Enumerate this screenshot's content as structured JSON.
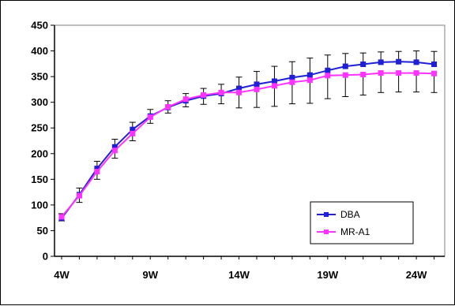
{
  "chart_data": {
    "type": "line",
    "title": "",
    "xlabel": "",
    "ylabel": "",
    "x": [
      4,
      5,
      6,
      7,
      8,
      9,
      10,
      11,
      12,
      13,
      14,
      15,
      16,
      17,
      18,
      19,
      20,
      21,
      22,
      23,
      24,
      25
    ],
    "xticks": [
      {
        "value": 4,
        "label": "4W"
      },
      {
        "value": 9,
        "label": "9W"
      },
      {
        "value": 14,
        "label": "14W"
      },
      {
        "value": 19,
        "label": "19W"
      },
      {
        "value": 24,
        "label": "24W"
      }
    ],
    "xlim": [
      3.6,
      25.6
    ],
    "ylim": [
      0,
      450
    ],
    "yticks": [
      0,
      50,
      100,
      150,
      200,
      250,
      300,
      350,
      400,
      450
    ],
    "grid": false,
    "legend_position": "bottom-right",
    "series": [
      {
        "name": "DBA",
        "color": "#1f1fd6",
        "marker": "square",
        "values": [
          74,
          120,
          171,
          213,
          247,
          273,
          290,
          303,
          312,
          317,
          327,
          335,
          341,
          348,
          353,
          362,
          370,
          374,
          378,
          379,
          378,
          374
        ],
        "error_plus": [
          9,
          13,
          14,
          15,
          14,
          13,
          13,
          14,
          15,
          18,
          22,
          25,
          29,
          31,
          33,
          30,
          25,
          22,
          20,
          20,
          22,
          25
        ]
      },
      {
        "name": "MR-A1",
        "color": "#ff33ff",
        "marker": "square",
        "values": [
          77,
          118,
          165,
          206,
          239,
          271,
          291,
          306,
          314,
          319,
          319,
          325,
          332,
          339,
          343,
          352,
          353,
          354,
          357,
          357,
          357,
          356
        ],
        "error_minus": [
          8,
          13,
          15,
          15,
          14,
          12,
          12,
          15,
          18,
          22,
          30,
          35,
          40,
          42,
          45,
          45,
          42,
          40,
          38,
          37,
          37,
          37
        ]
      }
    ]
  }
}
